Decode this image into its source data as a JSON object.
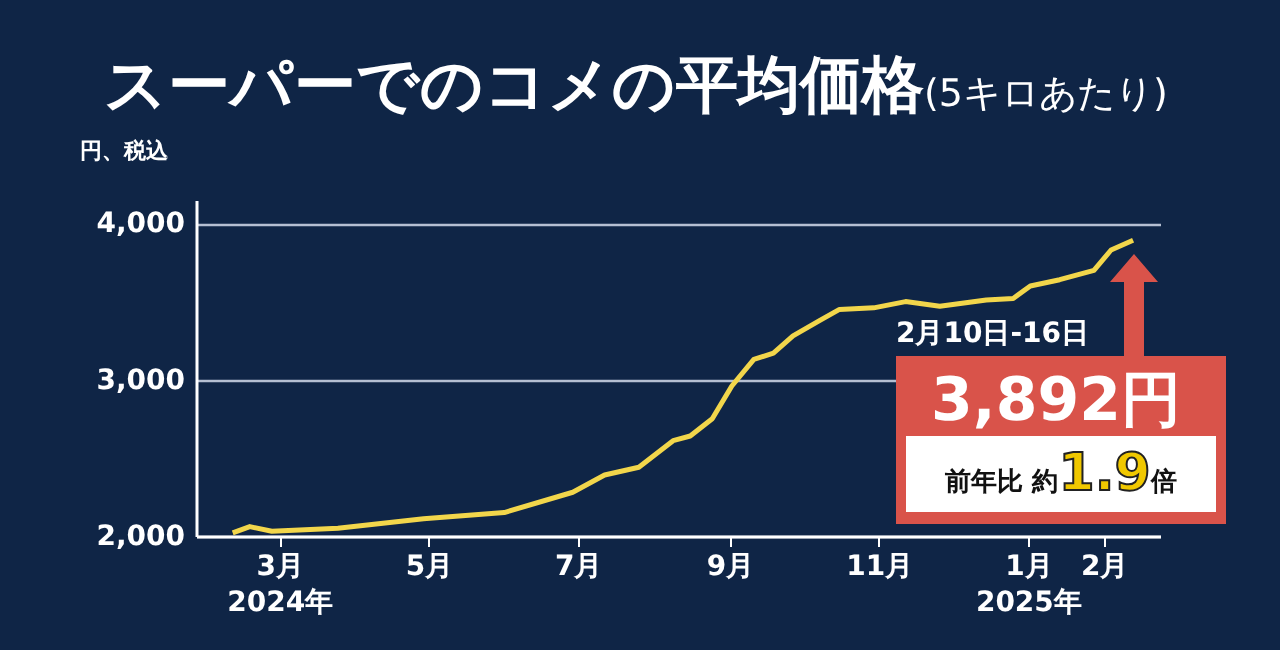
{
  "chart_data": {
    "type": "line",
    "title": "スーパーでのコメの平均価格",
    "subtitle": "(5キロあたり)",
    "ylabel": "円、税込",
    "x": [
      "2024-02-11",
      "2024-02-18",
      "2024-02-27",
      "2024-03-25",
      "2024-04-29",
      "2024-06-01",
      "2024-06-29",
      "2024-07-12",
      "2024-07-26",
      "2024-08-09",
      "2024-08-16",
      "2024-08-25",
      "2024-09-02",
      "2024-09-11",
      "2024-09-19",
      "2024-09-27",
      "2024-10-08",
      "2024-10-16",
      "2024-10-30",
      "2024-11-12",
      "2024-11-26",
      "2024-12-15",
      "2024-12-26",
      "2025-01-02",
      "2025-01-14",
      "2025-01-28",
      "2025-02-04",
      "2025-02-13"
    ],
    "series": [
      {
        "color": "#f2d64b",
        "values": [
          2020,
          2060,
          2030,
          2050,
          2110,
          2150,
          2280,
          2390,
          2440,
          2610,
          2640,
          2750,
          2960,
          3130,
          3170,
          3280,
          3380,
          3450,
          3460,
          3500,
          3470,
          3510,
          3520,
          3600,
          3640,
          3700,
          3830,
          3892
        ]
      }
    ],
    "xlim": [
      "2024-01-27",
      "2025-02-24"
    ],
    "xticks": [
      {
        "value": "2024-03-01",
        "label": "3月\n2024年"
      },
      {
        "value": "2024-05-01",
        "label": "5月"
      },
      {
        "value": "2024-07-01",
        "label": "7月"
      },
      {
        "value": "2024-09-01",
        "label": "9月"
      },
      {
        "value": "2024-11-01",
        "label": "11月"
      },
      {
        "value": "2025-01-01",
        "label": "1月\n2025年"
      },
      {
        "value": "2025-02-01",
        "label": "2月"
      }
    ],
    "ylim": [
      2000,
      4150
    ],
    "yticks": [
      {
        "value": 2000,
        "label": "2,000"
      },
      {
        "value": 3000,
        "label": "3,000"
      },
      {
        "value": 4000,
        "label": "4,000"
      }
    ],
    "grid": "y",
    "marker": "none",
    "line_style": "solid",
    "annotations": [
      "2月10日-16日",
      {
        "text": "3,892円",
        "x": "2025-02-13",
        "y": 3892
      },
      "前年比 約1.9倍"
    ]
  }
}
